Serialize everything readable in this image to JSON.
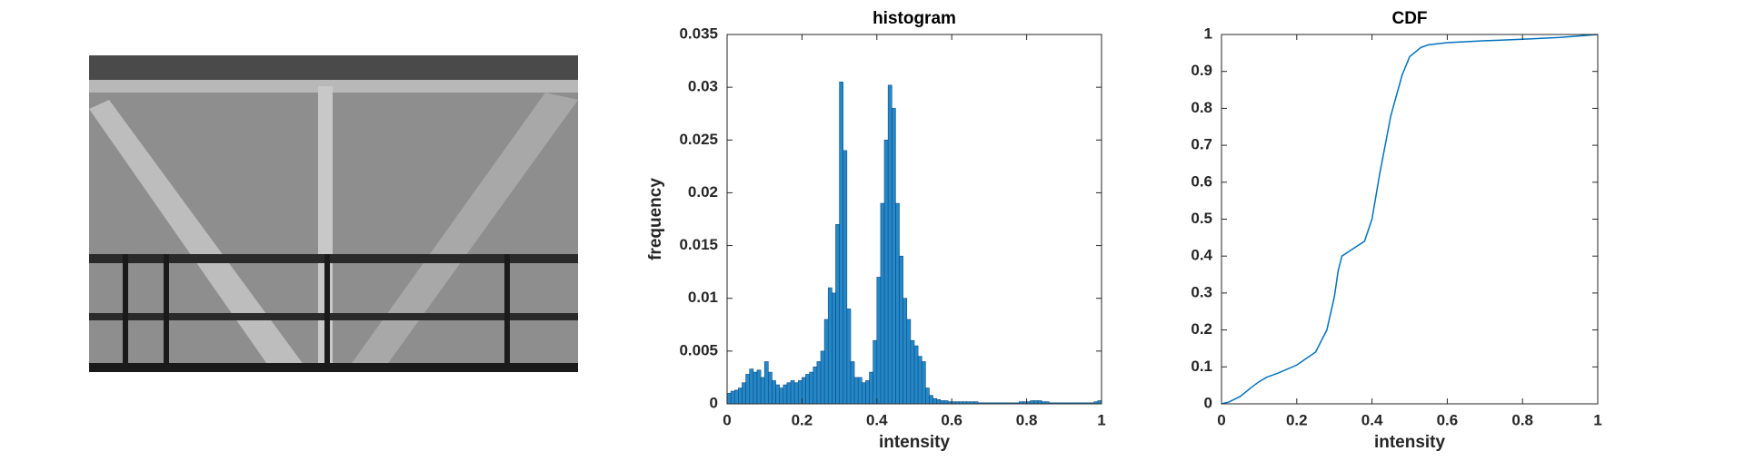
{
  "chart_data": [
    {
      "type": "histogram",
      "title": "histogram",
      "x_label": "intensity",
      "y_label": "frequency",
      "color": "#0072bd",
      "bins": [
        0,
        0.01,
        0.02,
        0.03,
        0.04,
        0.05,
        0.06,
        0.07,
        0.08,
        0.09,
        0.1,
        0.11,
        0.12,
        0.13,
        0.14,
        0.15,
        0.16,
        0.17,
        0.18,
        0.19,
        0.2,
        0.21,
        0.22,
        0.23,
        0.24,
        0.25,
        0.26,
        0.27,
        0.28,
        0.29,
        0.3,
        0.31,
        0.32,
        0.33,
        0.34,
        0.35,
        0.36,
        0.37,
        0.38,
        0.39,
        0.4,
        0.41,
        0.42,
        0.43,
        0.44,
        0.45,
        0.46,
        0.47,
        0.48,
        0.49,
        0.5,
        0.51,
        0.52,
        0.53,
        0.54,
        0.55,
        0.56,
        0.57,
        0.58,
        0.59,
        0.6,
        0.61,
        0.62,
        0.63,
        0.64,
        0.65,
        0.66,
        0.67,
        0.68,
        0.69,
        0.7,
        0.71,
        0.72,
        0.73,
        0.74,
        0.75,
        0.76,
        0.77,
        0.78,
        0.79,
        0.8,
        0.81,
        0.82,
        0.83,
        0.84,
        0.85,
        0.86,
        0.87,
        0.88,
        0.89,
        0.9,
        0.91,
        0.92,
        0.93,
        0.94,
        0.95,
        0.96,
        0.97,
        0.98,
        0.99,
        1
      ],
      "values": [
        0.001,
        0.0012,
        0.0013,
        0.0015,
        0.002,
        0.0028,
        0.0033,
        0.003,
        0.0032,
        0.0025,
        0.004,
        0.003,
        0.0022,
        0.0018,
        0.0015,
        0.0018,
        0.002,
        0.0022,
        0.002,
        0.0022,
        0.0025,
        0.0028,
        0.003,
        0.0035,
        0.004,
        0.005,
        0.008,
        0.011,
        0.0105,
        0.017,
        0.0305,
        0.024,
        0.009,
        0.004,
        0.0025,
        0.0025,
        0.002,
        0.0022,
        0.003,
        0.006,
        0.012,
        0.019,
        0.025,
        0.0302,
        0.028,
        0.019,
        0.014,
        0.01,
        0.008,
        0.006,
        0.0055,
        0.0045,
        0.004,
        0.0015,
        0.0008,
        0.0005,
        0.0004,
        0.0003,
        0.0003,
        0.0002,
        0.0002,
        0.0002,
        0.0002,
        0.0002,
        0.0002,
        0.0002,
        0.0002,
        0.0001,
        0.0001,
        0.0001,
        0.0001,
        0.0001,
        0.0001,
        0.0001,
        0.0001,
        0.0001,
        0.0001,
        0.0001,
        0.0002,
        0.0002,
        0.0002,
        0.0003,
        0.0003,
        0.0003,
        0.0002,
        0.0002,
        0.0001,
        0.0001,
        0.0001,
        0.0001,
        0.0001,
        0.0001,
        0.0001,
        0.0001,
        0.0001,
        0.0001,
        0.0001,
        0.0001,
        0.0002,
        0.0003
      ],
      "xlim": [
        0,
        1
      ],
      "xticks": [
        0,
        0.2,
        0.4,
        0.6,
        0.8,
        1
      ],
      "ylim": [
        0,
        0.035
      ],
      "yticks": [
        0,
        0.005,
        0.01,
        0.015,
        0.02,
        0.025,
        0.03,
        0.035
      ]
    },
    {
      "type": "line",
      "title": "CDF",
      "x_label": "intensity",
      "color": "#0072bd",
      "x": [
        0,
        0.02,
        0.05,
        0.08,
        0.1,
        0.12,
        0.15,
        0.2,
        0.25,
        0.28,
        0.3,
        0.31,
        0.32,
        0.35,
        0.38,
        0.4,
        0.42,
        0.45,
        0.48,
        0.5,
        0.53,
        0.55,
        0.6,
        0.7,
        0.8,
        0.9,
        1
      ],
      "values": [
        0,
        0.005,
        0.02,
        0.045,
        0.06,
        0.072,
        0.083,
        0.105,
        0.14,
        0.2,
        0.29,
        0.36,
        0.4,
        0.42,
        0.44,
        0.5,
        0.62,
        0.78,
        0.89,
        0.94,
        0.965,
        0.972,
        0.978,
        0.983,
        0.987,
        0.992,
        1
      ],
      "xlim": [
        0,
        1
      ],
      "xticks": [
        0,
        0.2,
        0.4,
        0.6,
        0.8,
        1
      ],
      "ylim": [
        0,
        1
      ],
      "yticks": [
        0,
        0.1,
        0.2,
        0.3,
        0.4,
        0.5,
        0.6,
        0.7,
        0.8,
        0.9,
        1
      ]
    }
  ]
}
